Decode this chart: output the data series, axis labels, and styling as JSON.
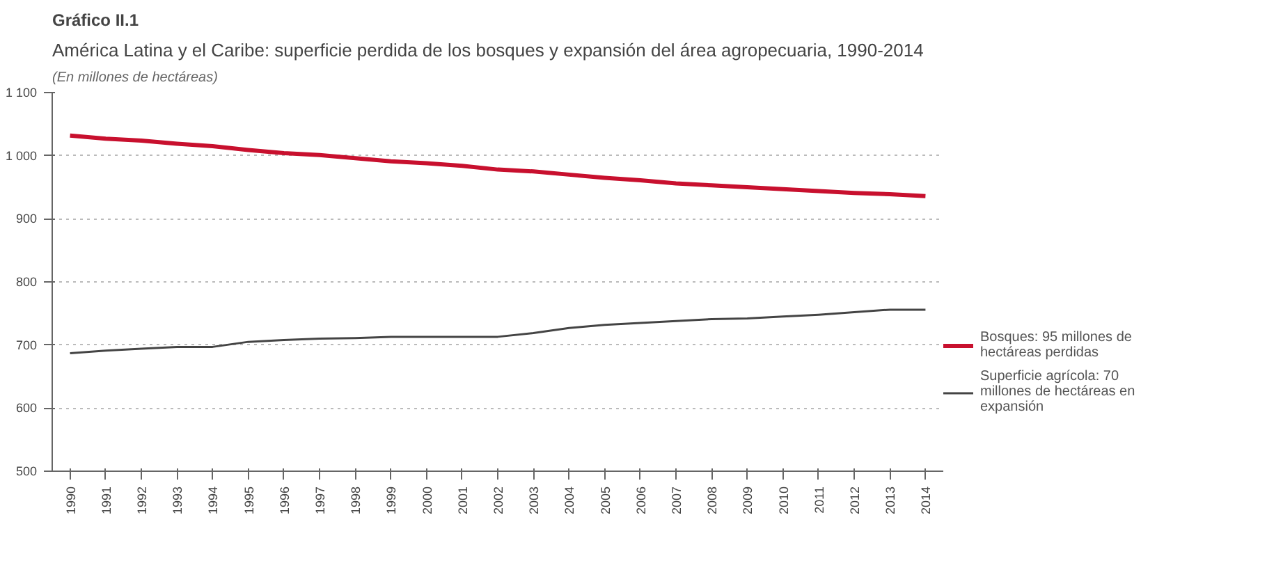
{
  "chart_data": {
    "type": "line",
    "title": "Gráfico II.1",
    "subtitle": "América Latina y el Caribe: superficie perdida de los bosques y expansión del área agropecuaria, 1990-2014",
    "annotations": [
      "(En millones de hectáreas)"
    ],
    "categories": [
      "1990",
      "1991",
      "1992",
      "1993",
      "1994",
      "1995",
      "1996",
      "1997",
      "1998",
      "1999",
      "2000",
      "2001",
      "2002",
      "2003",
      "2004",
      "2005",
      "2006",
      "2007",
      "2008",
      "2009",
      "2010",
      "2011",
      "2012",
      "2013",
      "2014"
    ],
    "series": [
      {
        "name": "Bosques: 95 millones de hectáreas perdidas",
        "color": "#c8102e",
        "values": [
          1032,
          1027,
          1024,
          1019,
          1015,
          1009,
          1004,
          1001,
          996,
          991,
          988,
          984,
          978,
          975,
          970,
          965,
          961,
          956,
          953,
          950,
          947,
          944,
          941,
          939,
          936
        ]
      },
      {
        "name": "Superficie agrícola: 70 millones de hectáreas en expansión",
        "color": "#444444",
        "values": [
          687,
          691,
          694,
          697,
          697,
          705,
          708,
          710,
          711,
          713,
          713,
          713,
          713,
          719,
          727,
          732,
          735,
          738,
          741,
          742,
          745,
          748,
          752,
          756,
          756
        ]
      }
    ],
    "ylim": [
      500,
      1100
    ],
    "yticks": [
      500,
      600,
      700,
      800,
      900,
      {
        "value": 1000,
        "label": "1 000"
      },
      {
        "value": 1100,
        "label": "1 100"
      }
    ],
    "grid": "y",
    "legend": "right",
    "line_style": "solid"
  }
}
